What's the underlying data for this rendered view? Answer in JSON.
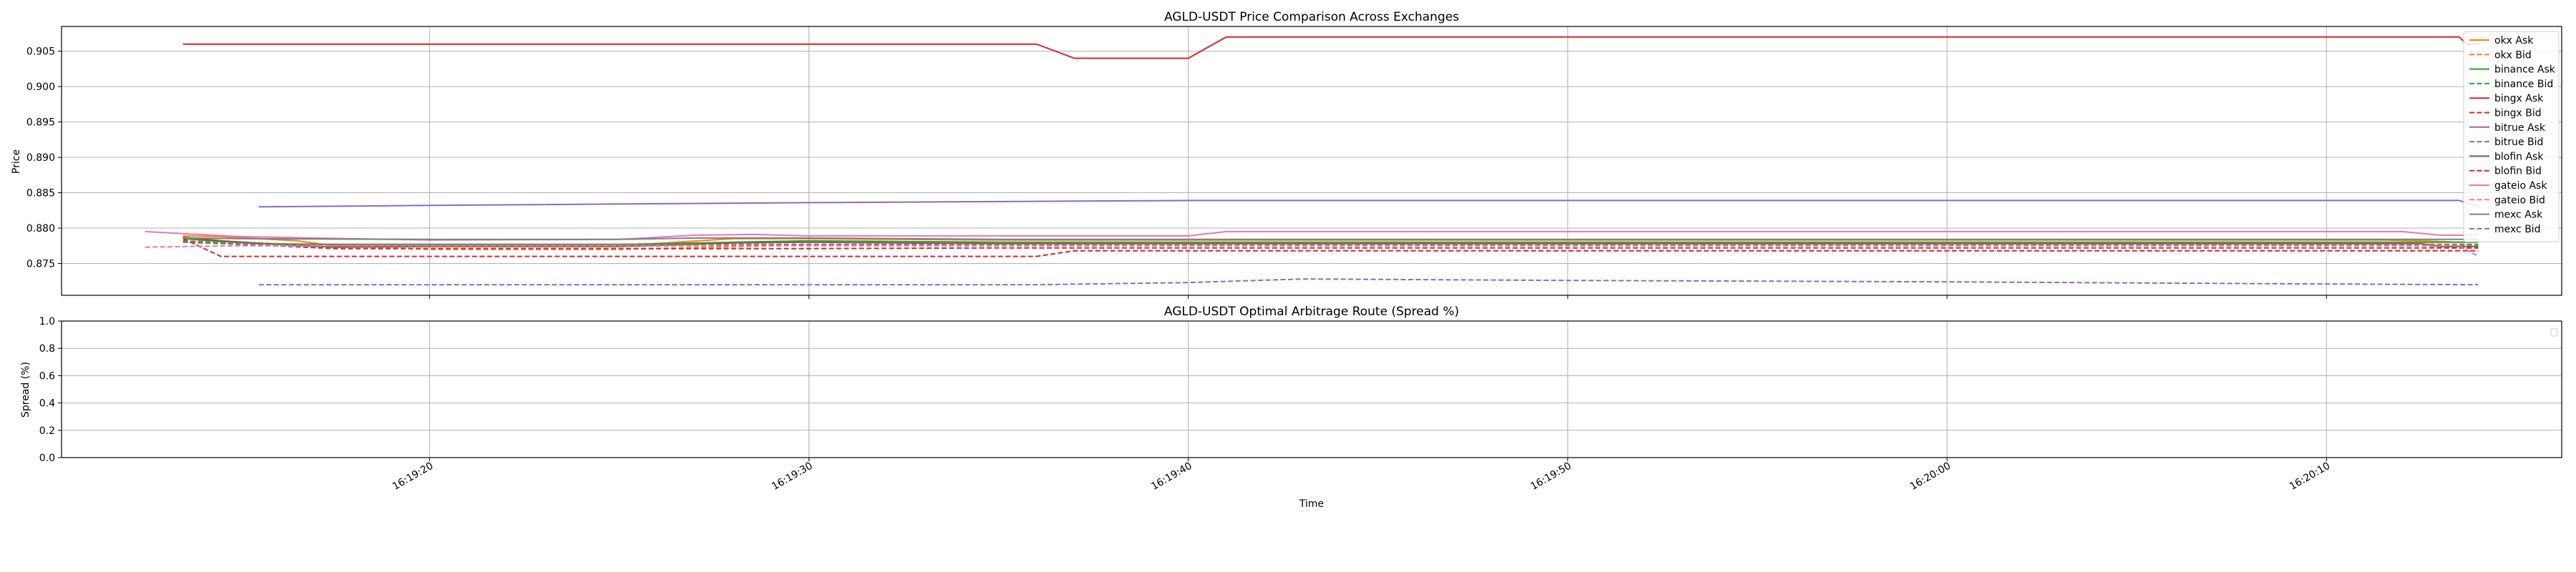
{
  "chart_data": [
    {
      "type": "line",
      "title": "AGLD-USDT Price Comparison Across Exchanges",
      "xlabel": "",
      "ylabel": "Price",
      "x_range": [
        "16:19:10.3",
        "16:20:16.2"
      ],
      "ylim": [
        0.8705,
        0.9085
      ],
      "yticks": [
        0.875,
        0.88,
        0.885,
        0.89,
        0.895,
        0.9,
        0.905
      ],
      "ytick_labels": [
        "0.875",
        "0.880",
        "0.885",
        "0.890",
        "0.895",
        "0.900",
        "0.905"
      ],
      "xticks": [
        "16:19:20",
        "16:19:30",
        "16:19:40",
        "16:19:50",
        "16:20:00",
        "16:20:10"
      ],
      "grid": true,
      "legend": "right",
      "series": [
        {
          "name": "okx Ask",
          "color": "#ff7f0e",
          "dash": false,
          "x": [
            "16:19:13.5",
            "16:19:14.5",
            "16:19:15.5",
            "16:19:16.5",
            "16:19:17.5",
            "16:19:20",
            "16:19:25",
            "16:19:28",
            "16:19:30",
            "16:19:35",
            "16:19:40",
            "16:19:45",
            "16:19:50",
            "16:20:00",
            "16:20:10",
            "16:20:11.5",
            "16:20:12.5",
            "16:20:13.5",
            "16:20:14"
          ],
          "y": [
            0.8789,
            0.8788,
            0.8785,
            0.8782,
            0.8775,
            0.8775,
            0.8775,
            0.8785,
            0.8785,
            0.8783,
            0.8783,
            0.8783,
            0.8783,
            0.8783,
            0.8783,
            0.8783,
            0.8782,
            0.878,
            0.878
          ]
        },
        {
          "name": "okx Bid",
          "color": "#ff7f0e",
          "dash": true,
          "x": [
            "16:19:13.5",
            "16:19:14.5",
            "16:19:15.5",
            "16:19:16.5",
            "16:19:20",
            "16:19:25",
            "16:19:30",
            "16:19:35",
            "16:19:40",
            "16:19:45",
            "16:19:50",
            "16:20:00",
            "16:20:10",
            "16:20:12.5",
            "16:20:13",
            "16:20:14"
          ],
          "y": [
            0.8781,
            0.8781,
            0.8779,
            0.8777,
            0.877,
            0.877,
            0.8776,
            0.8776,
            0.8776,
            0.8776,
            0.8776,
            0.8776,
            0.8776,
            0.8776,
            0.8772,
            0.8772
          ]
        },
        {
          "name": "binance Ask",
          "color": "#2ca02c",
          "dash": false,
          "x": [
            "16:19:13.5",
            "16:19:14.5",
            "16:19:15.5",
            "16:19:17.5",
            "16:19:20",
            "16:19:25",
            "16:19:28",
            "16:19:30",
            "16:19:35",
            "16:19:40",
            "16:19:45",
            "16:19:50",
            "16:20:00",
            "16:20:10",
            "16:20:12.5",
            "16:20:14"
          ],
          "y": [
            0.8785,
            0.8781,
            0.8778,
            0.8777,
            0.8777,
            0.8777,
            0.878,
            0.8782,
            0.878,
            0.878,
            0.878,
            0.878,
            0.878,
            0.878,
            0.878,
            0.878
          ]
        },
        {
          "name": "binance Bid",
          "color": "#2ca02c",
          "dash": true,
          "x": [
            "16:19:13.5",
            "16:19:15.5",
            "16:19:17.5",
            "16:19:20",
            "16:19:25",
            "16:19:30",
            "16:19:35",
            "16:19:40",
            "16:19:45",
            "16:19:50",
            "16:20:00",
            "16:20:10",
            "16:20:12.5",
            "16:20:14"
          ],
          "y": [
            0.878,
            0.8776,
            0.8774,
            0.8774,
            0.8774,
            0.8777,
            0.8776,
            0.8776,
            0.8776,
            0.8776,
            0.8776,
            0.8776,
            0.8776,
            0.8776
          ]
        },
        {
          "name": "bingx Ask",
          "color": "#d62728",
          "dash": false,
          "x": [
            "16:19:13.5",
            "16:19:20",
            "16:19:30",
            "16:19:36",
            "16:19:37",
            "16:19:40",
            "16:19:41",
            "16:19:50",
            "16:20:00",
            "16:20:10",
            "16:20:13.5",
            "16:20:13.7",
            "16:20:14"
          ],
          "y": [
            0.906,
            0.906,
            0.906,
            0.906,
            0.904,
            0.904,
            0.907,
            0.907,
            0.907,
            0.907,
            0.907,
            0.906,
            0.906
          ]
        },
        {
          "name": "bingx Bid",
          "color": "#d62728",
          "dash": true,
          "x": [
            "16:19:13.5",
            "16:19:14.5",
            "16:19:20",
            "16:19:30",
            "16:19:36",
            "16:19:37",
            "16:19:40",
            "16:19:50",
            "16:20:00",
            "16:20:10",
            "16:20:13.5",
            "16:20:14"
          ],
          "y": [
            0.8785,
            0.876,
            0.876,
            0.876,
            0.876,
            0.8768,
            0.8768,
            0.8768,
            0.8768,
            0.8768,
            0.8768,
            0.8768
          ]
        },
        {
          "name": "bitrue Ask",
          "color": "#9467bd",
          "dash": false,
          "x": [
            "16:19:15.5",
            "16:19:20",
            "16:19:30",
            "16:19:40",
            "16:19:50",
            "16:20:00",
            "16:20:10",
            "16:20:13.5",
            "16:20:14"
          ],
          "y": [
            0.883,
            0.8832,
            0.8836,
            0.8839,
            0.8839,
            0.8839,
            0.8839,
            0.8839,
            0.883
          ]
        },
        {
          "name": "bitrue Bid",
          "color": "#9467bd",
          "dash": true,
          "x": [
            "16:19:15.5",
            "16:19:20",
            "16:19:30",
            "16:19:36",
            "16:19:40",
            "16:19:43",
            "16:19:50",
            "16:20:00",
            "16:20:10",
            "16:20:14"
          ],
          "y": [
            0.872,
            0.872,
            0.872,
            0.872,
            0.8723,
            0.8728,
            0.8726,
            0.8724,
            0.8721,
            0.872
          ]
        },
        {
          "name": "blofin Ask",
          "color": "#8c564b",
          "dash": false,
          "x": [
            "16:19:13.5",
            "16:19:14.5",
            "16:19:16",
            "16:19:17.5",
            "16:19:20",
            "16:19:25",
            "16:19:28",
            "16:19:30",
            "16:19:35",
            "16:19:40",
            "16:19:45",
            "16:19:50",
            "16:20:00",
            "16:20:10",
            "16:20:12.5",
            "16:20:13",
            "16:20:14"
          ],
          "y": [
            0.8787,
            0.8782,
            0.8777,
            0.8773,
            0.8774,
            0.8774,
            0.8779,
            0.878,
            0.8778,
            0.8778,
            0.8778,
            0.8778,
            0.8778,
            0.8778,
            0.8778,
            0.8774,
            0.8774
          ]
        },
        {
          "name": "blofin Bid",
          "color": "#d62728",
          "dash": true,
          "x": [
            "16:19:13.5",
            "16:19:15.5",
            "16:19:17.5",
            "16:19:20",
            "16:19:30",
            "16:19:35",
            "16:19:40",
            "16:19:50",
            "16:20:00",
            "16:20:10",
            "16:20:14"
          ],
          "y": [
            0.8782,
            0.8776,
            0.8771,
            0.8771,
            0.8771,
            0.8772,
            0.8772,
            0.8772,
            0.8772,
            0.8772,
            0.8772
          ]
        },
        {
          "name": "gateio Ask",
          "color": "#e377c2",
          "dash": false,
          "x": [
            "16:19:12.5",
            "16:19:15",
            "16:19:17",
            "16:19:20",
            "16:19:25",
            "16:19:27",
            "16:19:28.5",
            "16:19:30",
            "16:19:35",
            "16:19:40",
            "16:19:41",
            "16:19:50",
            "16:20:00",
            "16:20:10",
            "16:20:12",
            "16:20:13",
            "16:20:14"
          ],
          "y": [
            0.8795,
            0.8788,
            0.8786,
            0.8783,
            0.8784,
            0.879,
            0.8791,
            0.8789,
            0.8789,
            0.8789,
            0.8795,
            0.8795,
            0.8795,
            0.8795,
            0.8795,
            0.879,
            0.879
          ]
        },
        {
          "name": "gateio Bid",
          "color": "#e377c2",
          "dash": true,
          "x": [
            "16:19:12.5",
            "16:19:15",
            "16:19:20",
            "16:19:25",
            "16:19:30",
            "16:19:35",
            "16:19:40",
            "16:19:50",
            "16:20:00",
            "16:20:10",
            "16:20:13.5",
            "16:20:14"
          ],
          "y": [
            0.8773,
            0.8775,
            0.8775,
            0.8775,
            0.8775,
            0.8775,
            0.8775,
            0.8775,
            0.8775,
            0.8775,
            0.8775,
            0.876
          ]
        },
        {
          "name": "mexc Ask",
          "color": "#7f7f7f",
          "dash": false,
          "x": [
            "16:19:13.5",
            "16:19:15",
            "16:19:20",
            "16:19:25",
            "16:19:27",
            "16:19:30",
            "16:19:35",
            "16:19:40",
            "16:19:50",
            "16:20:00",
            "16:20:10",
            "16:20:13",
            "16:20:14"
          ],
          "y": [
            0.8786,
            0.8785,
            0.8784,
            0.8784,
            0.8786,
            0.8786,
            0.8784,
            0.8784,
            0.8784,
            0.8784,
            0.8784,
            0.8784,
            0.8784
          ]
        },
        {
          "name": "mexc Bid",
          "color": "#7f7f7f",
          "dash": true,
          "x": [
            "16:19:13.5",
            "16:19:15.5",
            "16:19:20",
            "16:19:30",
            "16:19:35",
            "16:19:40",
            "16:19:50",
            "16:20:00",
            "16:20:10",
            "16:20:14"
          ],
          "y": [
            0.8781,
            0.8777,
            0.8777,
            0.8777,
            0.8777,
            0.8777,
            0.8777,
            0.8777,
            0.8777,
            0.8777
          ]
        }
      ]
    },
    {
      "type": "line",
      "title": "AGLD-USDT Optimal Arbitrage Route (Spread %)",
      "xlabel": "Time",
      "ylabel": "Spread (%)",
      "x_range": [
        "16:19:10.3",
        "16:20:16.2"
      ],
      "ylim": [
        0,
        1
      ],
      "yticks": [
        0,
        0.2,
        0.4,
        0.6,
        0.8,
        1.0
      ],
      "ytick_labels": [
        "0.0",
        "0.2",
        "0.4",
        "0.6",
        "0.8",
        "1.0"
      ],
      "xticks": [
        "16:19:20",
        "16:19:30",
        "16:19:40",
        "16:19:50",
        "16:20:00",
        "16:20:10"
      ],
      "xtick_labels": [
        "16:19:20",
        "16:19:30",
        "16:19:40",
        "16:19:50",
        "16:20:00",
        "16:20:10"
      ],
      "grid": true,
      "legend": "top-right",
      "series": []
    }
  ]
}
